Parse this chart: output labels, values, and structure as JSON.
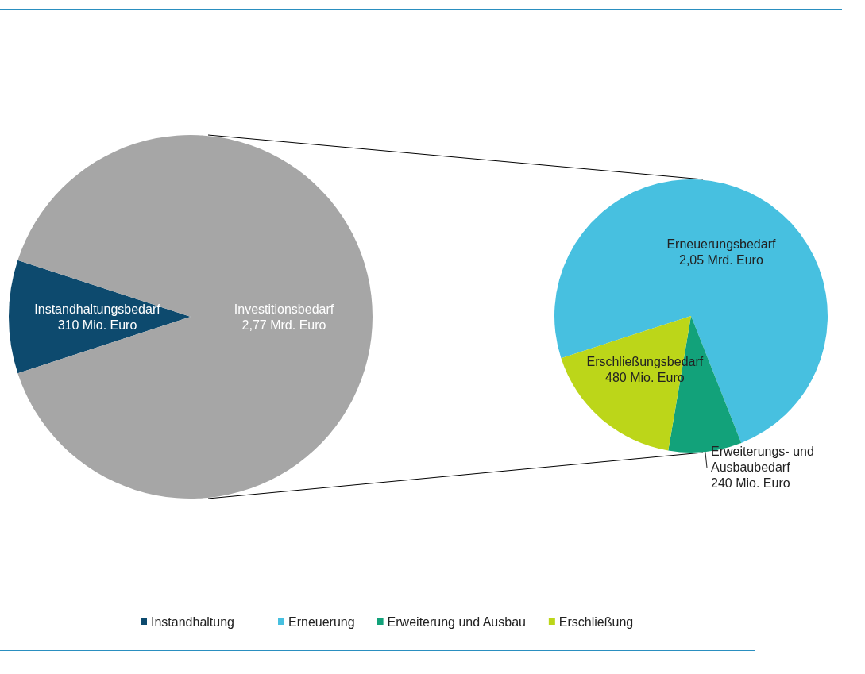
{
  "chart_data": [
    {
      "type": "pie",
      "categories": [
        "Instandhaltung",
        null
      ],
      "values": [
        310,
        2770
      ],
      "value_labels": [
        "Instandhaltungsbedarf\n310 Mio. Euro",
        "Investitionsbedarf\n2,77 Mrd. Euro"
      ],
      "colors": [
        "#0d4a6e",
        "#a6a6a6"
      ],
      "legend": "bottom"
    },
    {
      "type": "pie",
      "categories": [
        "Erneuerung",
        "Erweiterung und Ausbau",
        "Erschließung"
      ],
      "values": [
        2050,
        240,
        480
      ],
      "value_labels": [
        "Erneuerungsbedarf\n2,05 Mrd. Euro",
        "Erweiterungs- und\nAusbaubedarf\n240 Mio. Euro",
        "Erschließungsbedarf\n480 Mio. Euro"
      ],
      "colors": [
        "#47c0e0",
        "#12a27a",
        "#bcd619"
      ],
      "legend": "bottom"
    }
  ]
}
